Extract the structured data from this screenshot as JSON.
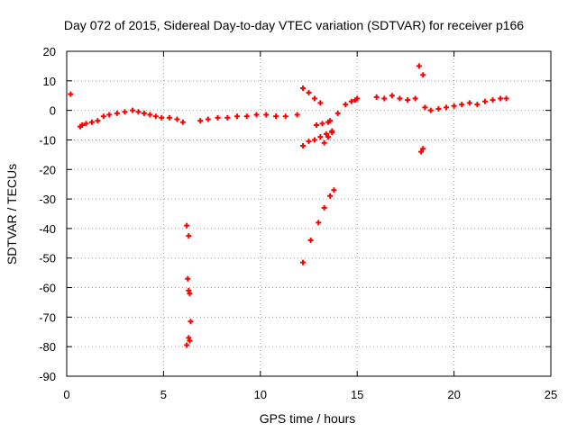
{
  "chart_data": {
    "type": "scatter",
    "title": "Day 072 of 2015, Sidereal Day-to-day VTEC variation (SDTVAR) for receiver p166",
    "xlabel": "GPS time / hours",
    "ylabel": "SDTVAR / TECUs",
    "xlim": [
      0,
      25
    ],
    "ylim": [
      -90,
      20
    ],
    "xticks": [
      0,
      5,
      10,
      15,
      20,
      25
    ],
    "yticks": [
      20,
      10,
      0,
      -10,
      -20,
      -30,
      -40,
      -50,
      -60,
      -70,
      -80,
      -90
    ],
    "grid": true,
    "marker": "+",
    "color": "#ff0000",
    "series": [
      {
        "name": "SDTVAR",
        "x": [
          0.2,
          0.7,
          0.8,
          1.0,
          1.3,
          1.6,
          1.9,
          2.2,
          2.6,
          3.0,
          3.4,
          3.7,
          4.0,
          4.3,
          4.6,
          4.9,
          5.3,
          5.7,
          6.0,
          6.2,
          6.3,
          6.25,
          6.3,
          6.35,
          6.4,
          6.3,
          6.2,
          6.35,
          6.9,
          7.3,
          7.8,
          8.3,
          8.8,
          9.3,
          9.8,
          10.3,
          10.8,
          11.3,
          11.9,
          12.2,
          12.5,
          12.8,
          13.1,
          13.3,
          13.5,
          13.7,
          12.2,
          12.5,
          12.8,
          13.1,
          13.4,
          13.7,
          12.2,
          12.6,
          13.0,
          13.3,
          13.6,
          13.8,
          12.9,
          13.2,
          13.5,
          13.6,
          14.0,
          14.4,
          14.7,
          14.9,
          15.0,
          16.0,
          16.4,
          16.8,
          17.2,
          17.6,
          18.0,
          18.2,
          18.4,
          18.5,
          18.3,
          18.4,
          18.8,
          19.2,
          19.6,
          20.0,
          20.4,
          20.8,
          21.2,
          21.6,
          22.0,
          22.4,
          22.7
        ],
        "y": [
          5.5,
          -5.5,
          -5,
          -4.5,
          -4,
          -3.5,
          -2,
          -1.5,
          -1,
          -0.5,
          0,
          -0.5,
          -1,
          -1.5,
          -2,
          -2.5,
          -2.5,
          -3,
          -4,
          -39,
          -42.5,
          -57,
          -61,
          -62,
          -71.5,
          -77,
          -79.5,
          -78,
          -3.5,
          -3,
          -2.5,
          -2.5,
          -2,
          -2,
          -1.5,
          -1.5,
          -2,
          -2,
          -1.5,
          7.5,
          6,
          4,
          2.5,
          -11,
          -9,
          -7.5,
          -12,
          -10.5,
          -10,
          -9,
          -8,
          -7,
          -51.5,
          -44,
          -38,
          -33,
          -29,
          -27,
          -5,
          -4.5,
          -4,
          -3.5,
          -1,
          2,
          3,
          3.5,
          4,
          4.5,
          4,
          5,
          4,
          3.5,
          4,
          15,
          12,
          1,
          -14,
          -13,
          0,
          0.5,
          1,
          1.5,
          2,
          2.5,
          2,
          3,
          3.5,
          4,
          4
        ]
      }
    ]
  }
}
